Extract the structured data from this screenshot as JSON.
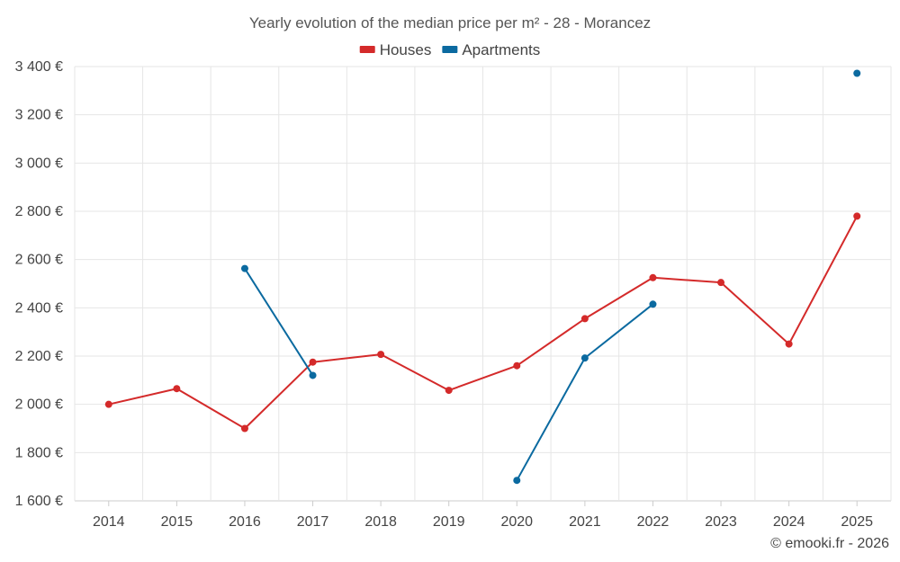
{
  "chart_data": {
    "type": "line",
    "title": "Yearly evolution of the median price per m² - 28 - Morancez",
    "categories": [
      "2014",
      "2015",
      "2016",
      "2017",
      "2018",
      "2019",
      "2020",
      "2021",
      "2022",
      "2023",
      "2024",
      "2025"
    ],
    "ylim": [
      1600,
      3400
    ],
    "yticks": [
      1600,
      1800,
      2000,
      2200,
      2400,
      2600,
      2800,
      3000,
      3200,
      3400
    ],
    "ytick_labels": [
      "1 600 €",
      "1 800 €",
      "2 000 €",
      "2 200 €",
      "2 400 €",
      "2 600 €",
      "2 800 €",
      "3 000 €",
      "3 200 €",
      "3 400 €"
    ],
    "legend_position": "top-center",
    "grid": true,
    "series": [
      {
        "name": "Houses",
        "color": "#d42a2a",
        "values": [
          2000,
          2065,
          1900,
          2175,
          2207,
          2058,
          2160,
          2355,
          2525,
          2505,
          2250,
          2780
        ]
      },
      {
        "name": "Apartments",
        "color": "#0b6aa0",
        "values": [
          null,
          null,
          2563,
          2120,
          null,
          null,
          1685,
          2192,
          2415,
          null,
          null,
          3372
        ]
      }
    ]
  },
  "footer": {
    "copyright": "© emooki.fr - 2026"
  }
}
